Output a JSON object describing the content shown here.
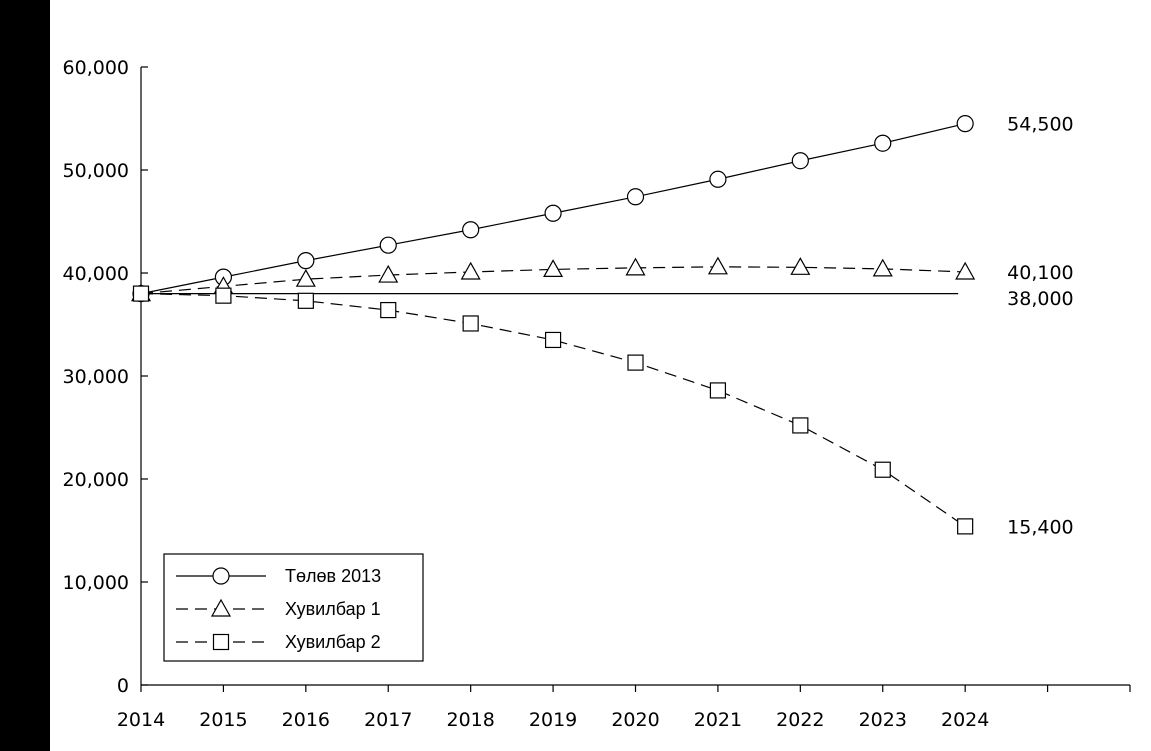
{
  "chart_data": {
    "type": "line",
    "x": [
      2014,
      2015,
      2016,
      2017,
      2018,
      2019,
      2020,
      2021,
      2022,
      2023,
      2024
    ],
    "xlim": [
      2014,
      2026
    ],
    "ylim": [
      0,
      60000
    ],
    "yticks": [
      0,
      10000,
      20000,
      30000,
      40000,
      50000,
      60000
    ],
    "ytick_labels": [
      "0",
      "10,000",
      "20,000",
      "30,000",
      "40,000",
      "50,000",
      "60,000"
    ],
    "xtick_labels": [
      "2014",
      "2015",
      "2016",
      "2017",
      "2018",
      "2019",
      "2020",
      "2021",
      "2022",
      "2023",
      "2024"
    ],
    "grid": false,
    "legend_position": "bottom-left",
    "series": [
      {
        "name": "Төлөв 2013",
        "marker": "circle",
        "line_style": "solid",
        "values": [
          38000,
          39600,
          41200,
          42700,
          44200,
          45800,
          47400,
          49100,
          50900,
          52600,
          54500
        ],
        "end_label": "54,500"
      },
      {
        "name": "Хувилбар 1",
        "marker": "triangle",
        "line_style": "dashed",
        "values": [
          38000,
          38700,
          39400,
          39800,
          40100,
          40350,
          40500,
          40600,
          40550,
          40400,
          40100
        ],
        "end_label": "40,100"
      },
      {
        "name": "Хувилбар 2",
        "marker": "square",
        "line_style": "dashed",
        "values": [
          38000,
          37800,
          37300,
          36400,
          35100,
          33500,
          31300,
          28600,
          25200,
          20900,
          15400
        ],
        "end_label": "15,400"
      }
    ],
    "reference_line": {
      "value": 38000,
      "x_start": 2014,
      "x_end": 2024,
      "label": "38,000"
    }
  }
}
